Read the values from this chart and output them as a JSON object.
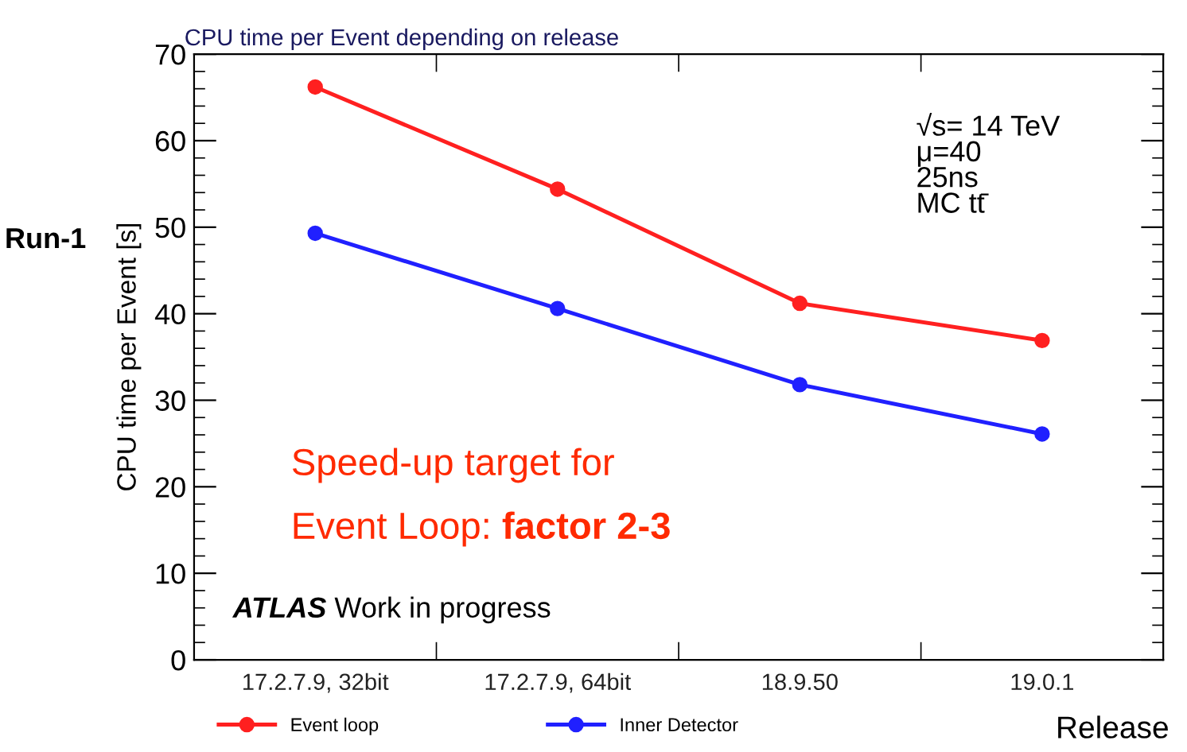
{
  "chart_data": {
    "type": "line",
    "title": "CPU time per Event depending on release",
    "xlabel": "Release",
    "ylabel": "CPU time per Event [s]",
    "categories": [
      "17.2.7.9, 32bit",
      "17.2.7.9, 64bit",
      "18.9.50",
      "19.0.1"
    ],
    "series": [
      {
        "name": "Event loop",
        "color": "#ff2020",
        "values": [
          66.2,
          54.4,
          41.2,
          36.9
        ]
      },
      {
        "name": "Inner Detector",
        "color": "#2020ff",
        "values": [
          49.3,
          40.6,
          31.8,
          26.1
        ]
      }
    ],
    "ylim": [
      0,
      70
    ],
    "yticks": [
      0,
      10,
      20,
      30,
      40,
      50,
      60,
      70
    ],
    "marker": "circle",
    "line_style": "solid",
    "legend": "bottom",
    "grid": false,
    "annotations": [
      "√s= 14 TeV\nμ=40\n25ns\nMC tt̄",
      "Run-1",
      "Speed-up target for",
      "Event Loop: ",
      "factor 2-3",
      "ATLAS",
      "Work in progress"
    ]
  }
}
